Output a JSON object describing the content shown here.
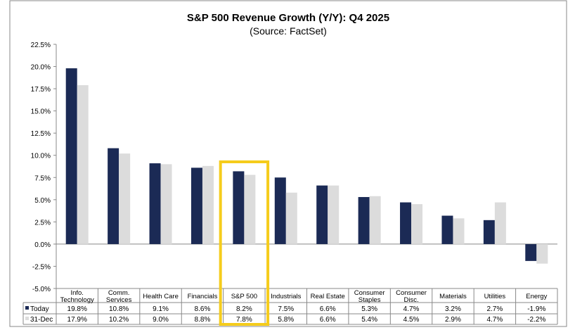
{
  "chart_data": {
    "type": "bar",
    "title": "S&P 500 Revenue Growth (Y/Y): Q4 2025",
    "subtitle": "(Source: FactSet)",
    "categories": [
      [
        "Info.",
        "Technology"
      ],
      [
        "Comm.",
        "Services"
      ],
      [
        "Health Care"
      ],
      [
        "Financials"
      ],
      [
        "S&P 500"
      ],
      [
        "Industrials"
      ],
      [
        "Real Estate"
      ],
      [
        "Consumer",
        "Staples"
      ],
      [
        "Consumer",
        "Disc."
      ],
      [
        "Materials"
      ],
      [
        "Utilities"
      ],
      [
        "Energy"
      ]
    ],
    "series": [
      {
        "name": "Today",
        "color": "#1b2a55",
        "values": [
          19.8,
          10.8,
          9.1,
          8.6,
          8.2,
          7.5,
          6.6,
          5.3,
          4.7,
          3.2,
          2.7,
          -1.9
        ],
        "labels": [
          "19.8%",
          "10.8%",
          "9.1%",
          "8.6%",
          "8.2%",
          "7.5%",
          "6.6%",
          "5.3%",
          "4.7%",
          "3.2%",
          "2.7%",
          "-1.9%"
        ]
      },
      {
        "name": "31-Dec",
        "color": "#dcdcdc",
        "values": [
          17.9,
          10.2,
          9.0,
          8.8,
          7.8,
          5.8,
          6.6,
          5.4,
          4.5,
          2.9,
          4.7,
          -2.2
        ],
        "labels": [
          "17.9%",
          "10.2%",
          "9.0%",
          "8.8%",
          "7.8%",
          "5.8%",
          "6.6%",
          "5.4%",
          "4.5%",
          "2.9%",
          "4.7%",
          "-2.2%"
        ]
      }
    ],
    "ylim": [
      -5,
      22.5
    ],
    "yticks": [
      "-5.0%",
      "-2.5%",
      "0.0%",
      "2.5%",
      "5.0%",
      "7.5%",
      "10.0%",
      "12.5%",
      "15.0%",
      "17.5%",
      "20.0%",
      "22.5%"
    ],
    "highlight_category": "S&P 500",
    "highlight_color": "#f5cc1c",
    "grid": false,
    "legend": "data-table"
  }
}
